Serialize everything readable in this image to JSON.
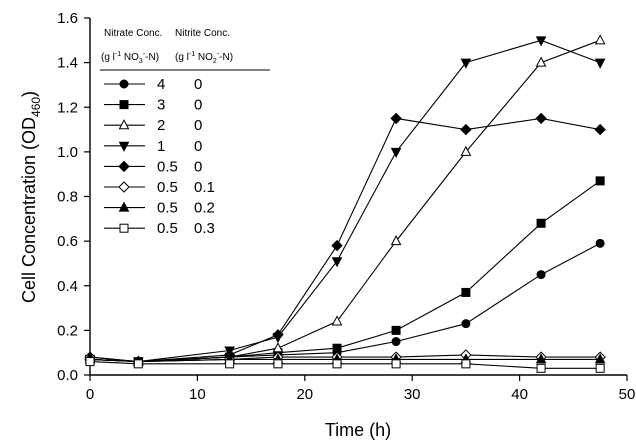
{
  "chart_data": {
    "type": "line",
    "xlabel": "Time (h)",
    "ylabel": "Cell Concentration (OD460)",
    "ylabel_main": "Cell Concentration (OD",
    "ylabel_sub": "460",
    "ylabel_close": ")",
    "xlim": [
      0,
      50
    ],
    "ylim": [
      0.0,
      1.6
    ],
    "x_ticks": [
      "0",
      "10",
      "20",
      "30",
      "40",
      "50"
    ],
    "y_ticks": [
      "0.0",
      "0.2",
      "0.4",
      "0.6",
      "0.8",
      "1.0",
      "1.2",
      "1.4",
      "1.6"
    ],
    "grid": false,
    "legend": {
      "placement": "top-left",
      "col1_header": "Nitrate Conc.",
      "col1_unit": "(g l-1 NO3--N)",
      "col2_header": "Nitrite Conc.",
      "col2_unit": "(g l-1 NO2--N)"
    },
    "series": [
      {
        "nitrate": "4",
        "nitrite": "0",
        "marker": "circle-filled",
        "x": [
          0,
          4.5,
          13,
          17.5,
          23,
          28.5,
          35,
          42,
          47.5
        ],
        "y": [
          0.07,
          0.06,
          0.08,
          0.09,
          0.1,
          0.15,
          0.23,
          0.45,
          0.59
        ]
      },
      {
        "nitrate": "3",
        "nitrite": "0",
        "marker": "square-filled",
        "x": [
          0,
          4.5,
          13,
          17.5,
          23,
          28.5,
          35,
          42,
          47.5
        ],
        "y": [
          0.07,
          0.06,
          0.08,
          0.1,
          0.12,
          0.2,
          0.37,
          0.68,
          0.87
        ]
      },
      {
        "nitrate": "2",
        "nitrite": "0",
        "marker": "triangle-open",
        "x": [
          0,
          4.5,
          13,
          17.5,
          23,
          28.5,
          35,
          42,
          47.5
        ],
        "y": [
          0.07,
          0.06,
          0.08,
          0.12,
          0.24,
          0.6,
          1.0,
          1.4,
          1.5
        ]
      },
      {
        "nitrate": "1",
        "nitrite": "0",
        "marker": "triangle-down",
        "x": [
          0,
          4.5,
          13,
          17.5,
          23,
          28.5,
          35,
          42,
          47.5
        ],
        "y": [
          0.07,
          0.06,
          0.11,
          0.17,
          0.51,
          1.0,
          1.4,
          1.5,
          1.4
        ]
      },
      {
        "nitrate": "0.5",
        "nitrite": "0",
        "marker": "diamond-filled",
        "x": [
          0,
          4.5,
          13,
          17.5,
          23,
          28.5,
          35,
          42,
          47.5
        ],
        "y": [
          0.07,
          0.06,
          0.09,
          0.18,
          0.58,
          1.15,
          1.1,
          1.15,
          1.1
        ]
      },
      {
        "nitrate": "0.5",
        "nitrite": "0.1",
        "marker": "diamond-open",
        "x": [
          0,
          4.5,
          13,
          17.5,
          23,
          28.5,
          35,
          42,
          47.5
        ],
        "y": [
          0.08,
          0.06,
          0.07,
          0.08,
          0.08,
          0.08,
          0.09,
          0.08,
          0.08
        ]
      },
      {
        "nitrate": "0.5",
        "nitrite": "0.2",
        "marker": "triangle-filled",
        "x": [
          0,
          4.5,
          13,
          17.5,
          23,
          28.5,
          35,
          42,
          47.5
        ],
        "y": [
          0.08,
          0.06,
          0.07,
          0.07,
          0.07,
          0.07,
          0.07,
          0.07,
          0.07
        ]
      },
      {
        "nitrate": "0.5",
        "nitrite": "0.3",
        "marker": "square-open",
        "x": [
          0,
          4.5,
          13,
          17.5,
          23,
          28.5,
          35,
          42,
          47.5
        ],
        "y": [
          0.06,
          0.05,
          0.05,
          0.05,
          0.05,
          0.05,
          0.05,
          0.03,
          0.03
        ]
      }
    ]
  }
}
